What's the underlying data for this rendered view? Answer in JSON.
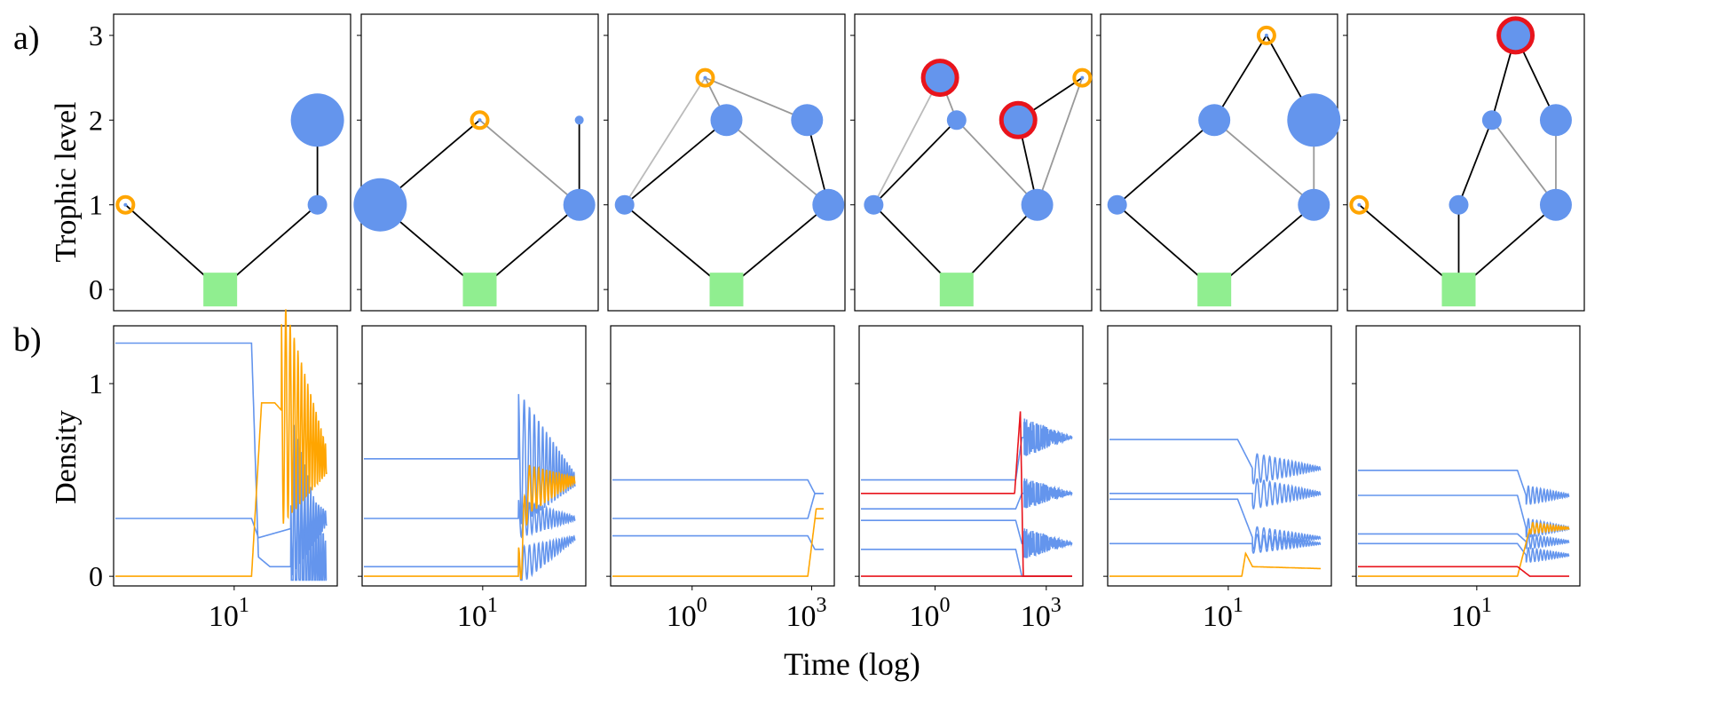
{
  "figure": {
    "label_a": "a)",
    "label_b": "b)",
    "ylabel_top": "Trophic level",
    "ylabel_bottom": "Density",
    "xlabel_bottom": "Time (log)"
  },
  "colors": {
    "species": "#6495ED",
    "invader": "#FFA500",
    "extinct_marker": "#E8141C",
    "resource": "#90EE90",
    "strong_link": "#000000",
    "weak_link": "#999999",
    "faint_link": "#BBBBBB"
  },
  "chart_data": [
    {
      "type": "network",
      "panel": "a-1",
      "yticks": [
        "0",
        "1",
        "2",
        "3"
      ],
      "ylim": [
        -0.25,
        3.25
      ],
      "nodes": [
        {
          "id": "R",
          "kind": "resource",
          "level": 0
        },
        {
          "id": "i",
          "kind": "invader",
          "level": 1
        },
        {
          "id": "s1",
          "kind": "species",
          "level": 1,
          "size": "small"
        },
        {
          "id": "s2",
          "kind": "species",
          "level": 2,
          "size": "large"
        }
      ],
      "links": [
        {
          "from": "i",
          "to": "R",
          "style": "strong"
        },
        {
          "from": "s1",
          "to": "R",
          "style": "strong"
        },
        {
          "from": "s2",
          "to": "s1",
          "style": "strong"
        }
      ]
    },
    {
      "type": "network",
      "panel": "a-2",
      "nodes": [
        {
          "id": "R",
          "kind": "resource",
          "level": 0
        },
        {
          "id": "s1",
          "kind": "species",
          "level": 1,
          "size": "large"
        },
        {
          "id": "s2",
          "kind": "species",
          "level": 1,
          "size": "medium"
        },
        {
          "id": "i",
          "kind": "invader",
          "level": 2
        },
        {
          "id": "s3",
          "kind": "species",
          "level": 2,
          "size": "tiny"
        }
      ],
      "links": [
        {
          "from": "s1",
          "to": "R",
          "style": "strong"
        },
        {
          "from": "s2",
          "to": "R",
          "style": "strong"
        },
        {
          "from": "i",
          "to": "s1",
          "style": "strong"
        },
        {
          "from": "i",
          "to": "s2",
          "style": "weak"
        },
        {
          "from": "s3",
          "to": "s2",
          "style": "strong"
        }
      ]
    },
    {
      "type": "network",
      "panel": "a-3",
      "nodes": [
        {
          "id": "R",
          "kind": "resource",
          "level": 0
        },
        {
          "id": "s1",
          "kind": "species",
          "level": 1,
          "size": "small"
        },
        {
          "id": "s2",
          "kind": "species",
          "level": 1,
          "size": "medium"
        },
        {
          "id": "s3",
          "kind": "species",
          "level": 2,
          "size": "medium"
        },
        {
          "id": "s4",
          "kind": "species",
          "level": 2,
          "size": "medium"
        },
        {
          "id": "i",
          "kind": "invader",
          "level": 2.5
        }
      ],
      "links": [
        {
          "from": "s1",
          "to": "R",
          "style": "strong"
        },
        {
          "from": "s2",
          "to": "R",
          "style": "strong"
        },
        {
          "from": "s3",
          "to": "s1",
          "style": "strong"
        },
        {
          "from": "s3",
          "to": "s2",
          "style": "weak"
        },
        {
          "from": "s4",
          "to": "s2",
          "style": "strong"
        },
        {
          "from": "i",
          "to": "s1",
          "style": "faint"
        },
        {
          "from": "i",
          "to": "s3",
          "style": "weak"
        },
        {
          "from": "i",
          "to": "s4",
          "style": "weak"
        }
      ]
    },
    {
      "type": "network",
      "panel": "a-4",
      "nodes": [
        {
          "id": "R",
          "kind": "resource",
          "level": 0
        },
        {
          "id": "s1",
          "kind": "species",
          "level": 1,
          "size": "small"
        },
        {
          "id": "s2",
          "kind": "species",
          "level": 1,
          "size": "medium"
        },
        {
          "id": "s3",
          "kind": "species",
          "level": 2,
          "size": "small"
        },
        {
          "id": "x1",
          "kind": "extinct",
          "level": 2.5
        },
        {
          "id": "x2",
          "kind": "extinct",
          "level": 2
        },
        {
          "id": "i",
          "kind": "invader",
          "level": 2.5
        }
      ],
      "links": [
        {
          "from": "s1",
          "to": "R",
          "style": "strong"
        },
        {
          "from": "s2",
          "to": "R",
          "style": "strong"
        },
        {
          "from": "s3",
          "to": "s1",
          "style": "strong"
        },
        {
          "from": "s3",
          "to": "s2",
          "style": "weak"
        },
        {
          "from": "x1",
          "to": "s1",
          "style": "faint"
        },
        {
          "from": "x1",
          "to": "s3",
          "style": "weak"
        },
        {
          "from": "x2",
          "to": "s2",
          "style": "strong"
        },
        {
          "from": "i",
          "to": "x2",
          "style": "strong"
        },
        {
          "from": "i",
          "to": "s2",
          "style": "weak"
        }
      ]
    },
    {
      "type": "network",
      "panel": "a-5",
      "nodes": [
        {
          "id": "R",
          "kind": "resource",
          "level": 0
        },
        {
          "id": "s1",
          "kind": "species",
          "level": 1,
          "size": "small"
        },
        {
          "id": "s2",
          "kind": "species",
          "level": 1,
          "size": "medium"
        },
        {
          "id": "s3",
          "kind": "species",
          "level": 2,
          "size": "medium"
        },
        {
          "id": "s4",
          "kind": "species",
          "level": 2,
          "size": "large"
        },
        {
          "id": "i",
          "kind": "invader",
          "level": 3
        }
      ],
      "links": [
        {
          "from": "s1",
          "to": "R",
          "style": "strong"
        },
        {
          "from": "s2",
          "to": "R",
          "style": "strong"
        },
        {
          "from": "s3",
          "to": "s1",
          "style": "strong"
        },
        {
          "from": "s3",
          "to": "s2",
          "style": "weak"
        },
        {
          "from": "s4",
          "to": "s2",
          "style": "weak"
        },
        {
          "from": "i",
          "to": "s3",
          "style": "strong"
        },
        {
          "from": "i",
          "to": "s4",
          "style": "strong"
        }
      ]
    },
    {
      "type": "network",
      "panel": "a-6",
      "nodes": [
        {
          "id": "R",
          "kind": "resource",
          "level": 0
        },
        {
          "id": "i",
          "kind": "invader",
          "level": 1
        },
        {
          "id": "s1",
          "kind": "species",
          "level": 1,
          "size": "small"
        },
        {
          "id": "s2",
          "kind": "species",
          "level": 1,
          "size": "medium"
        },
        {
          "id": "s3",
          "kind": "species",
          "level": 2,
          "size": "small"
        },
        {
          "id": "s4",
          "kind": "species",
          "level": 2,
          "size": "medium"
        },
        {
          "id": "x1",
          "kind": "extinct",
          "level": 3
        }
      ],
      "links": [
        {
          "from": "i",
          "to": "R",
          "style": "strong"
        },
        {
          "from": "s1",
          "to": "R",
          "style": "strong"
        },
        {
          "from": "s2",
          "to": "R",
          "style": "strong"
        },
        {
          "from": "s3",
          "to": "s1",
          "style": "strong"
        },
        {
          "from": "s3",
          "to": "s2",
          "style": "weak"
        },
        {
          "from": "s4",
          "to": "s2",
          "style": "weak"
        },
        {
          "from": "x1",
          "to": "s3",
          "style": "strong"
        },
        {
          "from": "x1",
          "to": "s4",
          "style": "strong"
        }
      ]
    },
    {
      "type": "line",
      "panel": "b-1",
      "xscale": "log",
      "xticks": [
        {
          "value": 10,
          "label": "10",
          "exp": "1"
        }
      ],
      "yticks": [
        "0",
        "1"
      ],
      "ylim": [
        -0.05,
        1.3
      ],
      "series": [
        {
          "color": "species",
          "x": [
            1,
            14,
            16,
            20,
            60
          ],
          "y": [
            1.21,
            1.21,
            0.1,
            0.05,
            0.05
          ],
          "osc": {
            "start": 30,
            "amp": 0.8
          }
        },
        {
          "color": "species",
          "x": [
            1,
            14,
            16,
            60
          ],
          "y": [
            0.3,
            0.3,
            0.2,
            0.3
          ],
          "osc": {
            "start": 30,
            "amp": 0.25
          }
        },
        {
          "color": "invader",
          "x": [
            1,
            14,
            17,
            22,
            60
          ],
          "y": [
            0.0,
            0.0,
            0.9,
            0.9,
            0.6
          ],
          "osc": {
            "start": 25,
            "amp": 0.6
          }
        }
      ]
    },
    {
      "type": "line",
      "panel": "b-2",
      "xscale": "log",
      "xticks": [
        {
          "value": 10,
          "label": "10",
          "exp": "1"
        }
      ],
      "yticks": [
        "0",
        "1"
      ],
      "series": [
        {
          "color": "species",
          "x": [
            1,
            20,
            60
          ],
          "y": [
            0.61,
            0.61,
            0.5
          ],
          "osc": {
            "start": 20,
            "amp": 0.35
          }
        },
        {
          "color": "species",
          "x": [
            1,
            20,
            60
          ],
          "y": [
            0.3,
            0.3,
            0.3
          ],
          "osc": {
            "start": 20,
            "amp": 0.1
          }
        },
        {
          "color": "species",
          "x": [
            1,
            20,
            60
          ],
          "y": [
            0.05,
            0.05,
            0.2
          ],
          "osc": {
            "start": 20,
            "amp": 0.1
          }
        },
        {
          "color": "invader",
          "x": [
            1,
            20,
            24,
            60
          ],
          "y": [
            0.0,
            0.0,
            0.45,
            0.5
          ],
          "osc": {
            "start": 20,
            "amp": 0.15
          }
        }
      ]
    },
    {
      "type": "line",
      "panel": "b-3",
      "xscale": "log",
      "xticks": [
        {
          "value": 1,
          "label": "10",
          "exp": "0"
        },
        {
          "value": 1000,
          "label": "10",
          "exp": "3"
        }
      ],
      "yticks": [
        "0",
        "1"
      ],
      "series": [
        {
          "color": "species",
          "x": [
            0.01,
            800,
            1200,
            2000
          ],
          "y": [
            0.5,
            0.5,
            0.43,
            0.43
          ]
        },
        {
          "color": "species",
          "x": [
            0.01,
            800,
            1200,
            2000
          ],
          "y": [
            0.3,
            0.3,
            0.43,
            0.43
          ]
        },
        {
          "color": "species",
          "x": [
            0.01,
            800,
            1200,
            2000
          ],
          "y": [
            0.21,
            0.21,
            0.14,
            0.14
          ]
        },
        {
          "color": "invader",
          "x": [
            0.01,
            800,
            1300,
            2000
          ],
          "y": [
            0.0,
            0.0,
            0.35,
            0.35
          ]
        },
        {
          "color": "invader",
          "x": [
            1200,
            2000
          ],
          "y": [
            0.3,
            0.3
          ]
        }
      ]
    },
    {
      "type": "line",
      "panel": "b-4",
      "xscale": "log",
      "xticks": [
        {
          "value": 1,
          "label": "10",
          "exp": "0"
        },
        {
          "value": 1000,
          "label": "10",
          "exp": "3"
        }
      ],
      "yticks": [
        "0",
        "1"
      ],
      "series": [
        {
          "color": "species",
          "x": [
            0.01,
            150,
            220,
            5000
          ],
          "y": [
            0.5,
            0.5,
            0.72,
            0.72
          ],
          "osc": {
            "start": 250,
            "amp": 0.1
          }
        },
        {
          "color": "species",
          "x": [
            0.01,
            150,
            220,
            5000
          ],
          "y": [
            0.35,
            0.35,
            0.43,
            0.43
          ],
          "osc": {
            "start": 250,
            "amp": 0.08
          }
        },
        {
          "color": "species",
          "x": [
            0.01,
            150,
            220,
            5000
          ],
          "y": [
            0.29,
            0.29,
            0.17,
            0.17
          ],
          "osc": {
            "start": 250,
            "amp": 0.08
          }
        },
        {
          "color": "species",
          "x": [
            0.01,
            150,
            220,
            5000
          ],
          "y": [
            0.14,
            0.14,
            0.0,
            0.0
          ]
        },
        {
          "color": "extinct_marker",
          "x": [
            0.01,
            140,
            200,
            240,
            5000
          ],
          "y": [
            0.43,
            0.43,
            0.86,
            0.0,
            0.0
          ]
        },
        {
          "color": "extinct_marker",
          "x": [
            0.01,
            5000
          ],
          "y": [
            0.0,
            0.0
          ]
        }
      ]
    },
    {
      "type": "line",
      "panel": "b-5",
      "xscale": "log",
      "xticks": [
        {
          "value": 10,
          "label": "10",
          "exp": "1"
        }
      ],
      "yticks": [
        "0",
        "1"
      ],
      "series": [
        {
          "color": "species",
          "x": [
            1,
            12,
            16,
            60
          ],
          "y": [
            0.71,
            0.71,
            0.56,
            0.56
          ],
          "osc": {
            "start": 16,
            "amp": 0.08
          }
        },
        {
          "color": "species",
          "x": [
            1,
            12,
            16,
            60
          ],
          "y": [
            0.43,
            0.43,
            0.43,
            0.43
          ],
          "osc": {
            "start": 16,
            "amp": 0.08
          }
        },
        {
          "color": "species",
          "x": [
            1,
            12,
            16,
            60
          ],
          "y": [
            0.4,
            0.4,
            0.2,
            0.2
          ],
          "osc": {
            "start": 16,
            "amp": 0.06
          }
        },
        {
          "color": "species",
          "x": [
            1,
            12,
            16,
            60
          ],
          "y": [
            0.17,
            0.17,
            0.17,
            0.17
          ],
          "osc": {
            "start": 16,
            "amp": 0.05
          }
        },
        {
          "color": "invader",
          "x": [
            1,
            13,
            14,
            16,
            60
          ],
          "y": [
            0.0,
            0.0,
            0.12,
            0.05,
            0.04
          ]
        }
      ]
    },
    {
      "type": "line",
      "panel": "b-6",
      "xscale": "log",
      "xticks": [
        {
          "value": 10,
          "label": "10",
          "exp": "1"
        }
      ],
      "yticks": [
        "0",
        "1"
      ],
      "series": [
        {
          "color": "species",
          "x": [
            1,
            22,
            26,
            60
          ],
          "y": [
            0.55,
            0.55,
            0.42,
            0.42
          ],
          "osc": {
            "start": 26,
            "amp": 0.05
          }
        },
        {
          "color": "species",
          "x": [
            1,
            22,
            26,
            60
          ],
          "y": [
            0.42,
            0.42,
            0.25,
            0.25
          ],
          "osc": {
            "start": 26,
            "amp": 0.05
          }
        },
        {
          "color": "species",
          "x": [
            1,
            22,
            26,
            60
          ],
          "y": [
            0.22,
            0.22,
            0.18,
            0.18
          ],
          "osc": {
            "start": 26,
            "amp": 0.04
          }
        },
        {
          "color": "species",
          "x": [
            1,
            22,
            26,
            60
          ],
          "y": [
            0.17,
            0.17,
            0.11,
            0.11
          ],
          "osc": {
            "start": 26,
            "amp": 0.04
          }
        },
        {
          "color": "invader",
          "x": [
            1,
            22,
            28,
            60
          ],
          "y": [
            0.0,
            0.0,
            0.25,
            0.25
          ],
          "osc": {
            "start": 28,
            "amp": 0.03
          }
        },
        {
          "color": "extinct_marker",
          "x": [
            1,
            22,
            28,
            60
          ],
          "y": [
            0.05,
            0.05,
            0.0,
            0.0
          ]
        }
      ]
    }
  ]
}
